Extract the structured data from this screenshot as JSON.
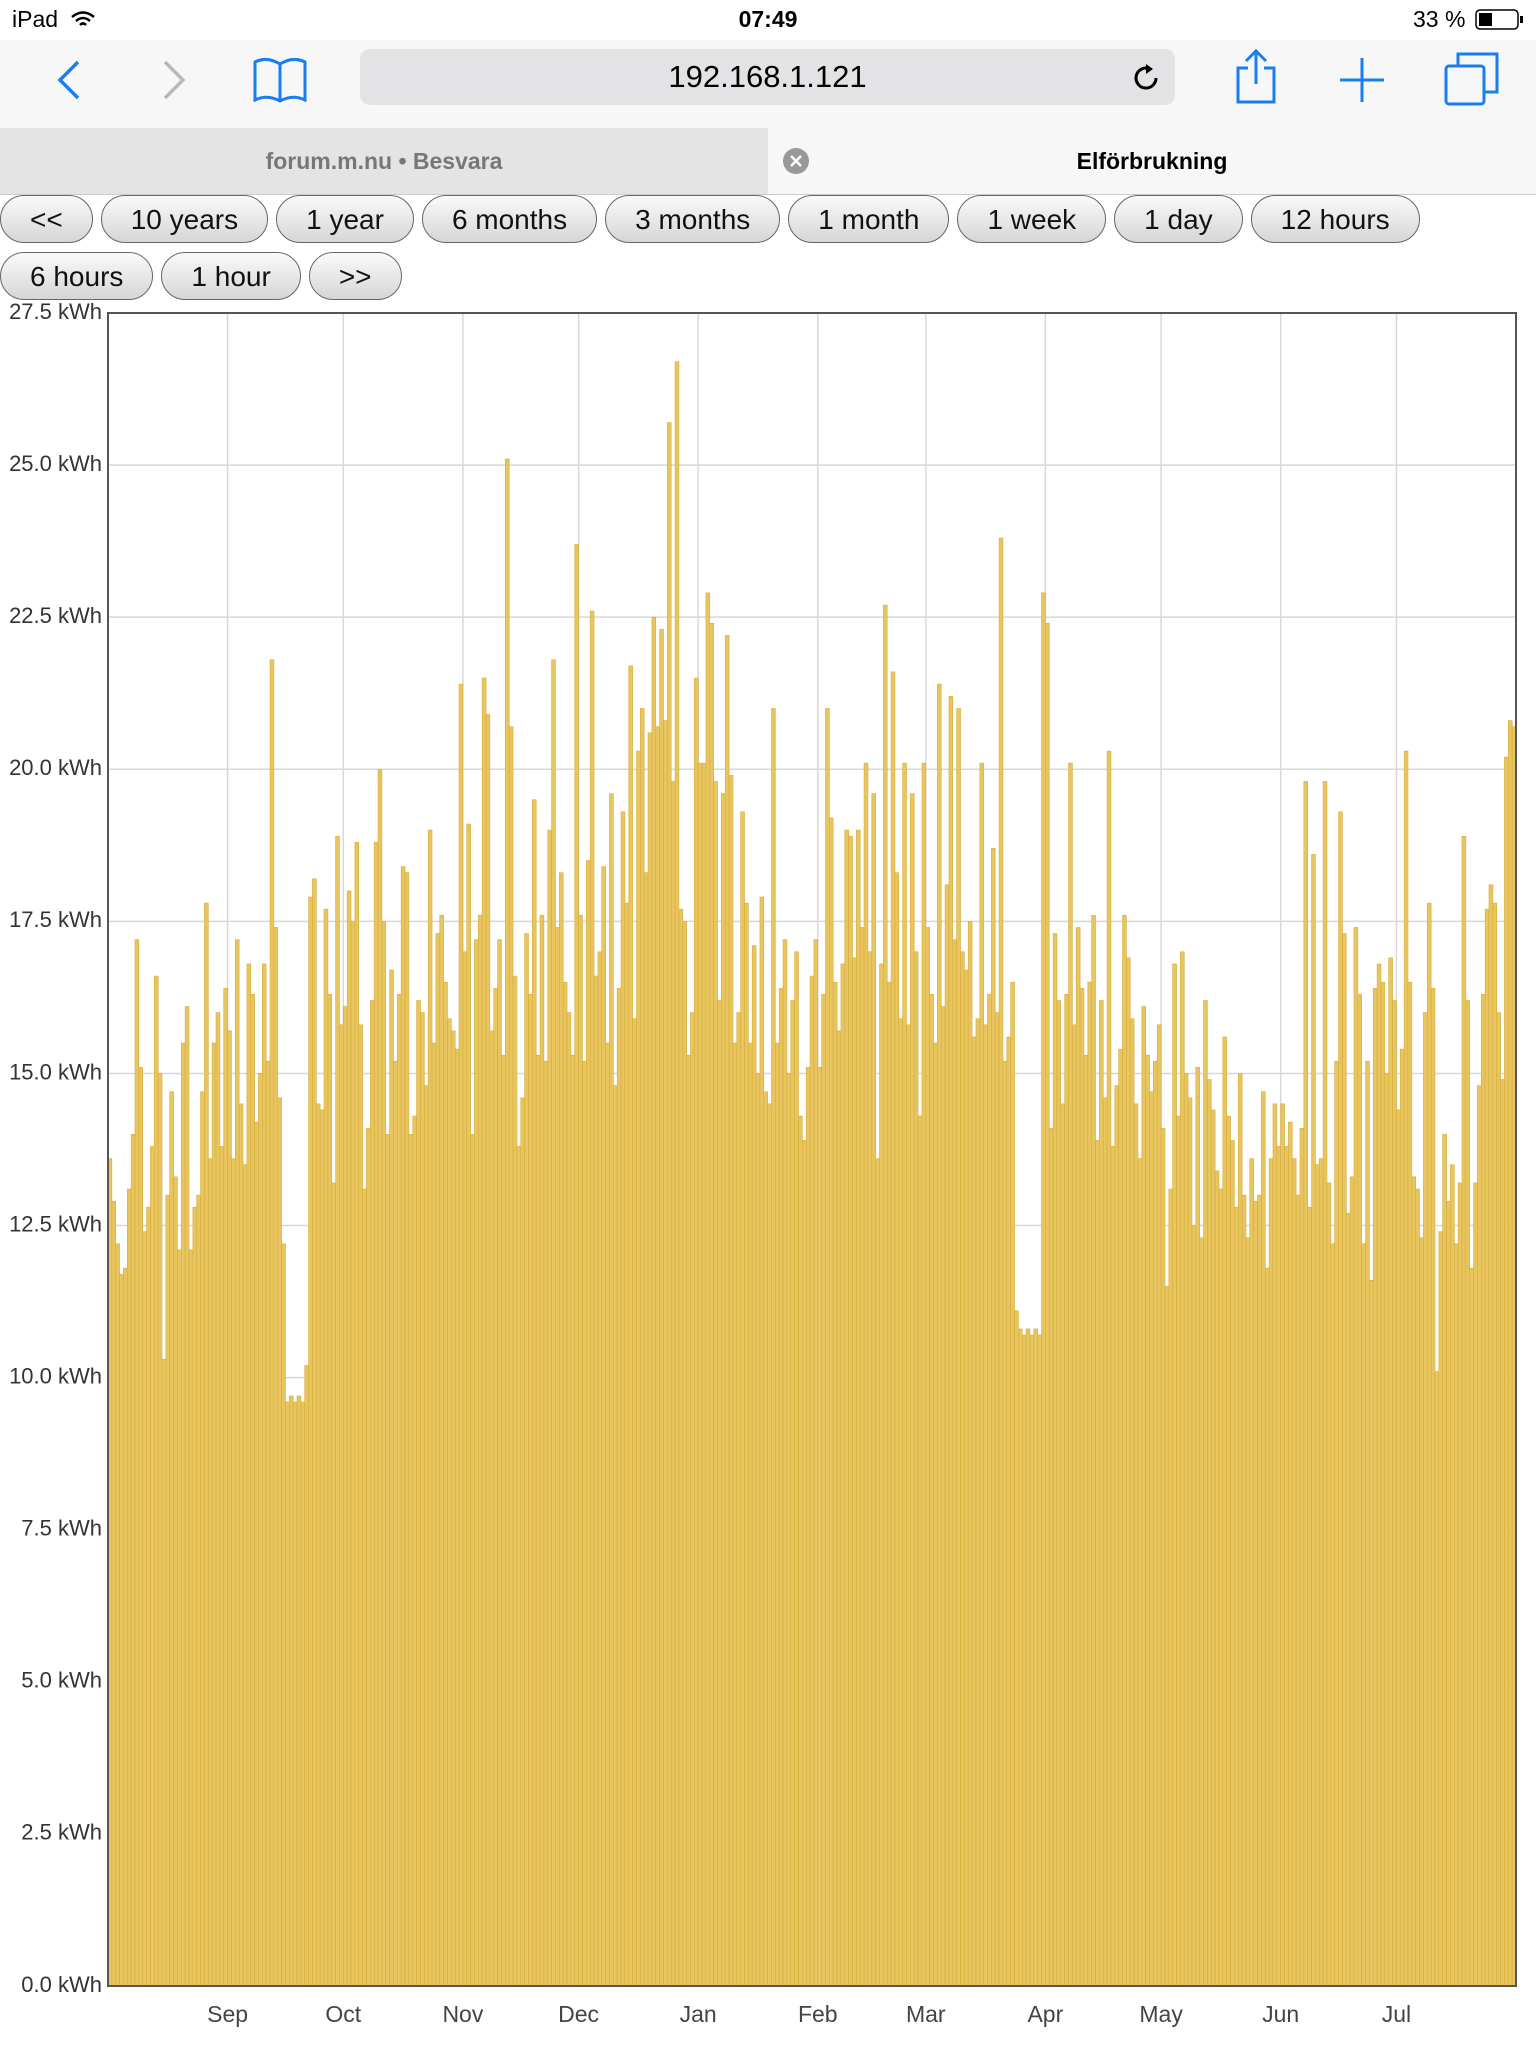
{
  "status_bar": {
    "device": "iPad",
    "time": "07:49",
    "battery": "33 %"
  },
  "browser": {
    "url": "192.168.1.121",
    "tabs": [
      "forum.m.nu • Besvara",
      "Elförbrukning"
    ]
  },
  "buttons": [
    "<<",
    "10 years",
    "1 year",
    "6 months",
    "3 months",
    "1 month",
    "1 week",
    "1 day",
    "12 hours",
    "6 hours",
    "1 hour",
    ">>"
  ],
  "chart_data": {
    "type": "bar",
    "color": "#e8c55e",
    "grid": true,
    "ylim": [
      0,
      27.5
    ],
    "yticks": [
      {
        "value": 0,
        "label": "0.0 kWh"
      },
      {
        "value": 2.5,
        "label": "2.5 kWh"
      },
      {
        "value": 5,
        "label": "5.0 kWh"
      },
      {
        "value": 7.5,
        "label": "7.5 kWh"
      },
      {
        "value": 10,
        "label": "10.0 kWh"
      },
      {
        "value": 12.5,
        "label": "12.5 kWh"
      },
      {
        "value": 15,
        "label": "15.0 kWh"
      },
      {
        "value": 17.5,
        "label": "17.5 kWh"
      },
      {
        "value": 20,
        "label": "20.0 kWh"
      },
      {
        "value": 22.5,
        "label": "22.5 kWh"
      },
      {
        "value": 25,
        "label": "25.0 kWh"
      },
      {
        "value": 27.5,
        "label": "27.5 kWh"
      }
    ],
    "categories": [
      null,
      null,
      null,
      null,
      null,
      null,
      null,
      null,
      null,
      null,
      null,
      null,
      null,
      null,
      null,
      null,
      null,
      null,
      null,
      null,
      null,
      null,
      null,
      null,
      null,
      null,
      null,
      null,
      null,
      null,
      null,
      "Sep",
      null,
      null,
      null,
      null,
      null,
      null,
      null,
      null,
      null,
      null,
      null,
      null,
      null,
      null,
      null,
      null,
      null,
      null,
      null,
      null,
      null,
      null,
      null,
      null,
      null,
      null,
      null,
      null,
      null,
      "Oct",
      null,
      null,
      null,
      null,
      null,
      null,
      null,
      null,
      null,
      null,
      null,
      null,
      null,
      null,
      null,
      null,
      null,
      null,
      null,
      null,
      null,
      null,
      null,
      null,
      null,
      null,
      null,
      null,
      null,
      null,
      "Nov",
      null,
      null,
      null,
      null,
      null,
      null,
      null,
      null,
      null,
      null,
      null,
      null,
      null,
      null,
      null,
      null,
      null,
      null,
      null,
      null,
      null,
      null,
      null,
      null,
      null,
      null,
      null,
      null,
      null,
      "Dec",
      null,
      null,
      null,
      null,
      null,
      null,
      null,
      null,
      null,
      null,
      null,
      null,
      null,
      null,
      null,
      null,
      null,
      null,
      null,
      null,
      null,
      null,
      null,
      null,
      null,
      null,
      null,
      null,
      null,
      null,
      "Jan",
      null,
      null,
      null,
      null,
      null,
      null,
      null,
      null,
      null,
      null,
      null,
      null,
      null,
      null,
      null,
      null,
      null,
      null,
      null,
      null,
      null,
      null,
      null,
      null,
      null,
      null,
      null,
      null,
      null,
      null,
      "Feb",
      null,
      null,
      null,
      null,
      null,
      null,
      null,
      null,
      null,
      null,
      null,
      null,
      null,
      null,
      null,
      null,
      null,
      null,
      null,
      null,
      null,
      null,
      null,
      null,
      null,
      null,
      null,
      "Mar",
      null,
      null,
      null,
      null,
      null,
      null,
      null,
      null,
      null,
      null,
      null,
      null,
      null,
      null,
      null,
      null,
      null,
      null,
      null,
      null,
      null,
      null,
      null,
      null,
      null,
      null,
      null,
      null,
      null,
      null,
      "Apr",
      null,
      null,
      null,
      null,
      null,
      null,
      null,
      null,
      null,
      null,
      null,
      null,
      null,
      null,
      null,
      null,
      null,
      null,
      null,
      null,
      null,
      null,
      null,
      null,
      null,
      null,
      null,
      null,
      null,
      "May",
      null,
      null,
      null,
      null,
      null,
      null,
      null,
      null,
      null,
      null,
      null,
      null,
      null,
      null,
      null,
      null,
      null,
      null,
      null,
      null,
      null,
      null,
      null,
      null,
      null,
      null,
      null,
      null,
      null,
      null,
      "Jun",
      null,
      null,
      null,
      null,
      null,
      null,
      null,
      null,
      null,
      null,
      null,
      null,
      null,
      null,
      null,
      null,
      null,
      null,
      null,
      null,
      null,
      null,
      null,
      null,
      null,
      null,
      null,
      null,
      null,
      "Jul",
      null,
      null,
      null,
      null,
      null,
      null,
      null,
      null,
      null,
      null,
      null,
      null,
      null,
      null,
      null,
      null,
      null,
      null,
      null,
      null,
      null,
      null,
      null,
      null,
      null,
      null,
      null,
      null,
      null,
      null
    ],
    "values": [
      13.6,
      12.9,
      12.2,
      11.7,
      11.8,
      13.1,
      14.0,
      17.2,
      15.1,
      12.4,
      12.8,
      13.8,
      16.6,
      15.0,
      10.3,
      13.0,
      14.7,
      13.3,
      12.1,
      15.5,
      16.1,
      12.1,
      12.8,
      13.0,
      14.7,
      17.8,
      13.6,
      15.5,
      16.0,
      13.8,
      16.4,
      15.7,
      13.6,
      17.2,
      14.5,
      13.5,
      16.8,
      16.3,
      14.2,
      15.0,
      16.8,
      15.2,
      21.8,
      17.4,
      14.6,
      12.2,
      9.6,
      9.7,
      9.6,
      9.7,
      9.6,
      10.2,
      17.9,
      18.2,
      14.5,
      14.4,
      17.7,
      16.3,
      13.2,
      18.9,
      15.8,
      16.1,
      18.0,
      17.5,
      18.8,
      15.8,
      13.1,
      14.1,
      16.2,
      18.8,
      20.0,
      17.5,
      14.0,
      16.7,
      15.2,
      16.3,
      18.4,
      18.3,
      14.0,
      14.3,
      16.2,
      16.0,
      14.8,
      19.0,
      15.5,
      17.3,
      17.6,
      16.5,
      15.9,
      15.7,
      15.4,
      21.4,
      17.0,
      19.1,
      14.0,
      17.2,
      17.6,
      21.5,
      20.9,
      15.7,
      16.4,
      17.2,
      15.3,
      25.1,
      20.7,
      16.6,
      13.8,
      14.6,
      17.3,
      16.3,
      19.5,
      15.3,
      17.6,
      15.2,
      19.0,
      21.8,
      17.4,
      18.3,
      16.5,
      16.0,
      15.3,
      23.7,
      17.6,
      15.2,
      18.5,
      22.6,
      16.6,
      17.0,
      18.4,
      15.5,
      19.6,
      14.8,
      16.4,
      19.3,
      17.8,
      21.7,
      15.9,
      20.3,
      21.0,
      18.3,
      20.6,
      22.5,
      20.7,
      22.3,
      20.8,
      25.7,
      19.8,
      26.7,
      17.7,
      17.5,
      15.3,
      16.0,
      21.5,
      20.1,
      20.1,
      22.9,
      22.4,
      19.8,
      16.2,
      19.6,
      22.2,
      19.9,
      15.5,
      16.0,
      19.3,
      17.8,
      15.5,
      17.1,
      15.0,
      17.9,
      14.7,
      14.5,
      21.0,
      15.5,
      16.4,
      17.2,
      15.0,
      16.2,
      17.0,
      14.3,
      13.9,
      15.1,
      16.6,
      17.2,
      15.1,
      16.3,
      21.0,
      19.2,
      16.5,
      15.7,
      16.8,
      19.0,
      18.9,
      16.9,
      19.0,
      17.4,
      20.1,
      17.0,
      19.6,
      13.6,
      16.8,
      22.7,
      16.5,
      21.6,
      18.3,
      15.9,
      20.1,
      15.8,
      19.6,
      17.0,
      14.3,
      20.1,
      17.4,
      16.3,
      15.5,
      21.4,
      16.1,
      18.1,
      21.2,
      17.2,
      21.0,
      17.0,
      16.7,
      17.5,
      15.6,
      15.9,
      20.1,
      15.8,
      16.3,
      18.7,
      16.0,
      23.8,
      15.2,
      15.6,
      16.5,
      11.1,
      10.8,
      10.7,
      10.8,
      10.7,
      10.8,
      10.7,
      22.9,
      22.4,
      14.1,
      17.3,
      16.2,
      14.5,
      16.3,
      20.1,
      15.8,
      17.4,
      16.4,
      15.3,
      16.5,
      17.6,
      13.9,
      16.2,
      14.6,
      20.3,
      13.8,
      14.8,
      15.4,
      17.6,
      16.9,
      15.9,
      14.5,
      13.6,
      16.1,
      15.3,
      14.7,
      15.2,
      15.8,
      14.1,
      11.5,
      13.1,
      16.8,
      14.3,
      17.0,
      15.0,
      14.6,
      12.5,
      15.1,
      12.3,
      16.2,
      14.9,
      14.4,
      13.4,
      13.1,
      15.6,
      14.3,
      13.9,
      12.8,
      15.0,
      13.0,
      12.3,
      13.6,
      12.9,
      13.0,
      14.7,
      11.8,
      13.6,
      14.5,
      13.8,
      14.5,
      13.8,
      14.2,
      13.6,
      13.0,
      14.1,
      19.8,
      12.8,
      18.6,
      13.5,
      13.6,
      19.8,
      13.2,
      12.2,
      15.2,
      19.3,
      17.3,
      12.7,
      13.3,
      17.4,
      16.3,
      12.2,
      15.2,
      11.6,
      16.4,
      16.8,
      16.5,
      15.0,
      16.9,
      16.2,
      14.4,
      15.4,
      20.3,
      16.5,
      13.3,
      13.1,
      12.3,
      16.0,
      17.8,
      16.4,
      10.1,
      12.4,
      14.0,
      12.9,
      13.5,
      12.2,
      13.2,
      18.9,
      16.2,
      11.8,
      13.2,
      14.8,
      16.3,
      17.7,
      18.1,
      17.8,
      16.0,
      14.9,
      20.2,
      20.8,
      20.7
    ]
  }
}
